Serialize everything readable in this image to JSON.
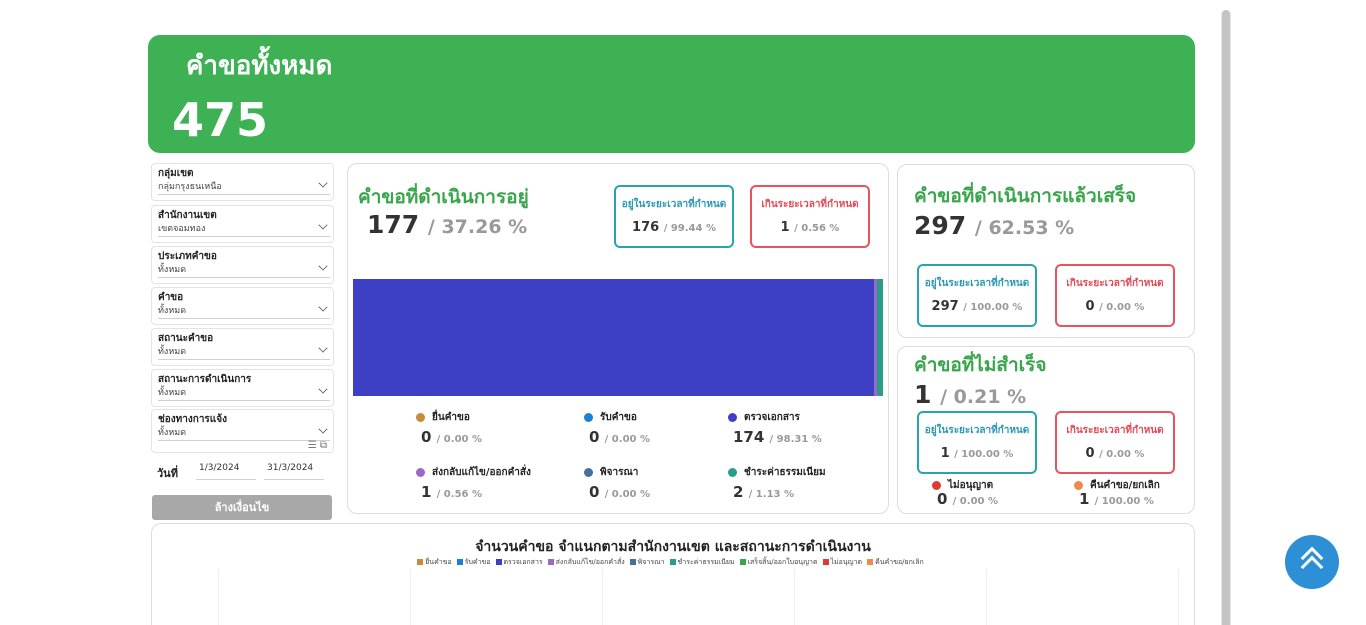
{
  "banner": {
    "title": "คำขอทั้งหมด",
    "total": "475"
  },
  "filters": {
    "items": [
      {
        "label": "กลุ่มเขต",
        "value": "กลุ่มกรุงธนเหนือ"
      },
      {
        "label": "สำนักงานเขต",
        "value": "เขตจอมทอง"
      },
      {
        "label": "ประเภทคำขอ",
        "value": "ทั้งหมด"
      },
      {
        "label": "คำขอ",
        "value": "ทั้งหมด"
      },
      {
        "label": "สถานะคำขอ",
        "value": "ทั้งหมด"
      },
      {
        "label": "สถานะการดำเนินการ",
        "value": "ทั้งหมด"
      },
      {
        "label": "ช่องทางการแจ้ง",
        "value": "ทั้งหมด"
      }
    ],
    "date_label": "วันที่",
    "date_from": "1/3/2024",
    "date_to": "31/3/2024",
    "clear_label": "ล้างเงื่อนไข"
  },
  "in_progress": {
    "title": "คำขอที่ดำเนินการอยู่",
    "count": "177",
    "pct": "/ 37.26 %",
    "within": {
      "label": "อยู่ในระยะเวลาที่กำหนด",
      "value": "176",
      "pct": "/ 99.44 %"
    },
    "over": {
      "label": "เกินระยะเวลาที่กำหนด",
      "value": "1",
      "pct": "/ 0.56 %"
    },
    "bar_share": [
      0,
      0,
      98.31,
      0.56,
      0,
      1.13
    ],
    "legend": [
      {
        "name": "ยื่นคำขอ",
        "value": "0",
        "pct": "/ 0.00 %",
        "color": "#c98a3a"
      },
      {
        "name": "รับคำขอ",
        "value": "0",
        "pct": "/ 0.00 %",
        "color": "#1a7fd6"
      },
      {
        "name": "ตรวจเอกสาร",
        "value": "174",
        "pct": "/ 98.31 %",
        "color": "#3d3fc4"
      },
      {
        "name": "ส่งกลับแก้ไข/ออกคำสั่ง",
        "value": "1",
        "pct": "/ 0.56 %",
        "color": "#9b6ac9"
      },
      {
        "name": "พิจารณา",
        "value": "0",
        "pct": "/ 0.00 %",
        "color": "#44709c"
      },
      {
        "name": "ชำระค่าธรรมเนียม",
        "value": "2",
        "pct": "/ 1.13 %",
        "color": "#2a9d8a"
      }
    ]
  },
  "done": {
    "title": "คำขอที่ดำเนินการแล้วเสร็จ",
    "count": "297",
    "pct": "/ 62.53 %",
    "within": {
      "label": "อยู่ในระยะเวลาที่กำหนด",
      "value": "297",
      "pct": "/ 100.00 %"
    },
    "over": {
      "label": "เกินระยะเวลาที่กำหนด",
      "value": "0",
      "pct": "/ 0.00 %"
    }
  },
  "failed": {
    "title": "คำขอที่ไม่สำเร็จ",
    "count": "1",
    "pct": "/ 0.21 %",
    "within": {
      "label": "อยู่ในระยะเวลาที่กำหนด",
      "value": "1",
      "pct": "/ 100.00 %"
    },
    "over": {
      "label": "เกินระยะเวลาที่กำหนด",
      "value": "0",
      "pct": "/ 0.00 %"
    },
    "legend": [
      {
        "name": "ไม่อนุญาต",
        "value": "0",
        "pct": "/ 0.00 %",
        "color": "#e03a2f"
      },
      {
        "name": "คืนคำขอ/ยกเลิก",
        "value": "1",
        "pct": "/ 100.00 %",
        "color": "#f08a4b"
      }
    ]
  },
  "bottom_chart": {
    "title": "จำนวนคำขอ  จำแนกตามสำนักงานเขต และสถานะการดำเนินงาน",
    "legend": [
      {
        "name": "ยื่นคำขอ",
        "color": "#c98a3a"
      },
      {
        "name": "รับคำขอ",
        "color": "#1a7fd6"
      },
      {
        "name": "ตรวจเอกสาร",
        "color": "#3d3fc4"
      },
      {
        "name": "ส่งกลับแก้ไข/ออกคำสั่ง",
        "color": "#9b6ac9"
      },
      {
        "name": "พิจารณา",
        "color": "#44709c"
      },
      {
        "name": "ชำระค่าธรรมเนียม",
        "color": "#2a9d8a"
      },
      {
        "name": "เสร็จสิ้น/ออกใบอนุญาต",
        "color": "#3fa34d"
      },
      {
        "name": "ไม่อนุญาต",
        "color": "#e03a2f"
      },
      {
        "name": "คืนคำขอ/ยกเลิก",
        "color": "#f08a4b"
      }
    ]
  },
  "icons": {
    "filter": "filter-icon",
    "expand": "expand-icon",
    "scroll_top": "chevron-double-up-icon"
  }
}
